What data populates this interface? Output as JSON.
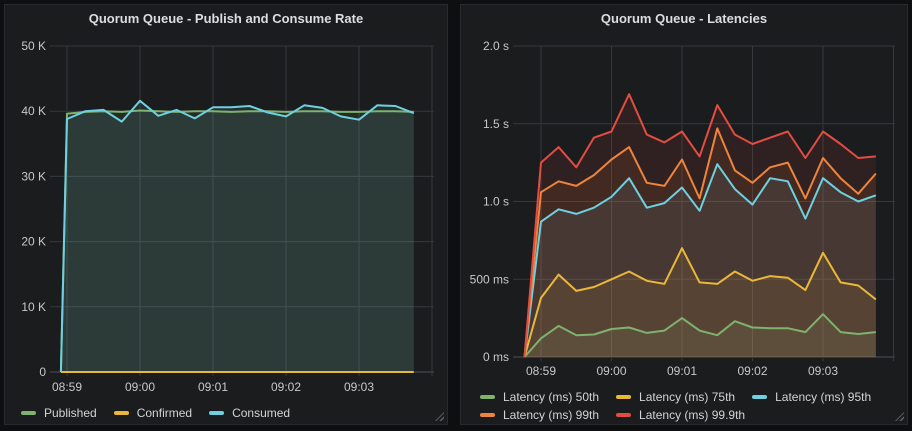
{
  "colors": {
    "green": "#7EB26D",
    "yellow": "#EAB839",
    "cyan": "#6ED0E0",
    "orange": "#EF843C",
    "red": "#E24D42",
    "panel_bg": "#1b1c1e",
    "page_bg": "#0e0f11",
    "grid": "#35383d",
    "axis": "#4e5257",
    "tick_text": "#c7c8ca",
    "title_text": "#dcdde1"
  },
  "chart_data": [
    {
      "type": "line",
      "title": "Quorum Queue - Publish and Consume Rate",
      "xlabel": "",
      "ylabel": "",
      "ylim": [
        0,
        50000
      ],
      "grid": true,
      "legend_position": "bottom",
      "x_tick_labels": [
        "08:59",
        "09:00",
        "09:01",
        "09:02",
        "09:03"
      ],
      "x_tick_seconds": [
        0,
        60,
        120,
        180,
        240
      ],
      "x_extra_gridline_seconds": [
        300
      ],
      "y_ticks": [
        {
          "value": 0,
          "label": "0"
        },
        {
          "value": 10000,
          "label": "10 K"
        },
        {
          "value": 20000,
          "label": "20 K"
        },
        {
          "value": 30000,
          "label": "30 K"
        },
        {
          "value": 40000,
          "label": "40 K"
        },
        {
          "value": 50000,
          "label": "50 K"
        }
      ],
      "t_seconds": [
        -5,
        0,
        15,
        30,
        45,
        60,
        75,
        90,
        105,
        120,
        135,
        150,
        165,
        180,
        195,
        210,
        225,
        240,
        255,
        270,
        285
      ],
      "series": [
        {
          "name": "Published",
          "color": "#7EB26D",
          "values": [
            0,
            39600,
            39900,
            40000,
            39900,
            40100,
            40000,
            39900,
            40000,
            40000,
            39900,
            40000,
            40000,
            39900,
            40000,
            40000,
            39900,
            39900,
            40000,
            40000,
            39900
          ]
        },
        {
          "name": "Confirmed",
          "color": "#EAB839",
          "values": [
            0,
            0,
            0,
            0,
            0,
            0,
            0,
            0,
            0,
            0,
            0,
            0,
            0,
            0,
            0,
            0,
            0,
            0,
            0,
            0,
            0
          ]
        },
        {
          "name": "Consumed",
          "color": "#6ED0E0",
          "values": [
            0,
            38800,
            40000,
            40200,
            38400,
            41600,
            39300,
            40200,
            38900,
            40600,
            40600,
            40800,
            39800,
            39200,
            40900,
            40500,
            39200,
            38700,
            40900,
            40800,
            39700
          ]
        }
      ],
      "legend_rows": [
        [
          0,
          1,
          2
        ]
      ]
    },
    {
      "type": "line",
      "title": "Quorum Queue - Latencies",
      "xlabel": "",
      "ylabel": "",
      "ylim": [
        0,
        2000
      ],
      "grid": true,
      "legend_position": "bottom",
      "x_tick_labels": [
        "08:59",
        "09:00",
        "09:01",
        "09:02",
        "09:03"
      ],
      "x_tick_seconds": [
        0,
        60,
        120,
        180,
        240
      ],
      "x_extra_gridline_seconds": [
        300
      ],
      "y_ticks": [
        {
          "value": 0,
          "label": "0 ms"
        },
        {
          "value": 500,
          "label": "500 ms"
        },
        {
          "value": 1000,
          "label": "1.0 s"
        },
        {
          "value": 1500,
          "label": "1.5 s"
        },
        {
          "value": 2000,
          "label": "2.0 s"
        }
      ],
      "t_seconds": [
        -14,
        0,
        15,
        30,
        45,
        60,
        75,
        90,
        105,
        120,
        135,
        150,
        165,
        180,
        195,
        210,
        225,
        240,
        255,
        270,
        285
      ],
      "series": [
        {
          "name": "Latency (ms) 50th",
          "color": "#7EB26D",
          "values": [
            0,
            120,
            200,
            140,
            145,
            180,
            190,
            155,
            170,
            250,
            170,
            140,
            230,
            190,
            185,
            185,
            160,
            275,
            160,
            148,
            160
          ]
        },
        {
          "name": "Latency (ms) 75th",
          "color": "#EAB839",
          "values": [
            0,
            380,
            530,
            425,
            450,
            500,
            550,
            490,
            470,
            700,
            480,
            470,
            550,
            490,
            520,
            510,
            430,
            670,
            480,
            460,
            370
          ]
        },
        {
          "name": "Latency (ms) 95th",
          "color": "#6ED0E0",
          "values": [
            0,
            870,
            950,
            920,
            960,
            1030,
            1150,
            960,
            990,
            1090,
            940,
            1240,
            1080,
            980,
            1150,
            1130,
            890,
            1150,
            1060,
            1000,
            1040
          ]
        },
        {
          "name": "Latency (ms) 99th",
          "color": "#EF843C",
          "values": [
            0,
            1060,
            1130,
            1100,
            1170,
            1270,
            1350,
            1120,
            1100,
            1270,
            1020,
            1470,
            1200,
            1120,
            1220,
            1250,
            1020,
            1280,
            1150,
            1050,
            1180
          ]
        },
        {
          "name": "Latency (ms) 99.9th",
          "color": "#E24D42",
          "values": [
            0,
            1250,
            1350,
            1220,
            1410,
            1450,
            1690,
            1430,
            1380,
            1450,
            1290,
            1620,
            1430,
            1370,
            1410,
            1450,
            1280,
            1450,
            1370,
            1280,
            1290
          ]
        }
      ],
      "legend_rows": [
        [
          0,
          1,
          2
        ],
        [
          3,
          4
        ]
      ]
    }
  ]
}
